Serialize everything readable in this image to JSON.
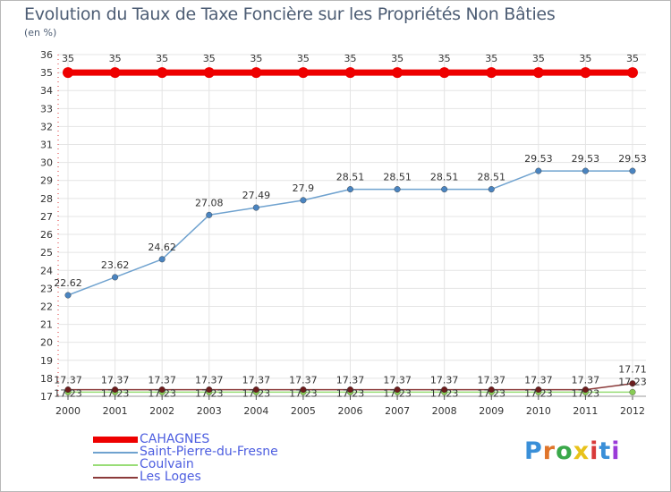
{
  "title": "Evolution du Taux de Taxe Foncière sur les Propriétés Non Bâties",
  "unit_label": "(en %)",
  "logo": {
    "text": "Proxiti",
    "colors": [
      "#3a8fd8",
      "#e0752a",
      "#3aa84a",
      "#e8c21a",
      "#d83a3a",
      "#3a8fd8",
      "#9a3ad8"
    ]
  },
  "chart_data": {
    "type": "line",
    "title": "Evolution du Taux de Taxe Foncière sur les Propriétés Non Bâties",
    "ylabel": "(en %)",
    "xlabel": "",
    "ylim": [
      17,
      36
    ],
    "yticks": [
      "17",
      "18",
      "19",
      "20",
      "21",
      "22",
      "23",
      "24",
      "25",
      "26",
      "27",
      "28",
      "29",
      "30",
      "31",
      "32",
      "33",
      "34",
      "35",
      "36"
    ],
    "categories": [
      "2000",
      "2001",
      "2002",
      "2003",
      "2004",
      "2005",
      "2006",
      "2007",
      "2008",
      "2009",
      "2010",
      "2011",
      "2012"
    ],
    "series": [
      {
        "name": "CAHAGNES",
        "color": "#ee0000",
        "values": [
          35,
          35,
          35,
          35,
          35,
          35,
          35,
          35,
          35,
          35,
          35,
          35,
          35
        ],
        "labels": [
          "35",
          "35",
          "35",
          "35",
          "35",
          "35",
          "35",
          "35",
          "35",
          "35",
          "35",
          "35",
          "35"
        ]
      },
      {
        "name": "Saint-Pierre-du-Fresne",
        "color": "#6fa2cf",
        "values": [
          22.62,
          23.62,
          24.62,
          27.08,
          27.49,
          27.9,
          28.51,
          28.51,
          28.51,
          28.51,
          29.53,
          29.53,
          29.53
        ],
        "labels": [
          "22.62",
          "23.62",
          "24.62",
          "27.08",
          "27.49",
          "27.9",
          "28.51",
          "28.51",
          "28.51",
          "28.51",
          "29.53",
          "29.53",
          "29.53"
        ]
      },
      {
        "name": "Coulvain",
        "color": "#99dd77",
        "values": [
          17.23,
          17.23,
          17.23,
          17.23,
          17.23,
          17.23,
          17.23,
          17.23,
          17.23,
          17.23,
          17.23,
          17.23,
          17.23
        ],
        "labels": [
          "17.23",
          "17.23",
          "17.23",
          "17.23",
          "17.23",
          "17.23",
          "17.23",
          "17.23",
          "17.23",
          "17.23",
          "17.23",
          "17.23",
          "17.23"
        ]
      },
      {
        "name": "Les Loges",
        "color": "#8b3a3a",
        "values": [
          17.37,
          17.37,
          17.37,
          17.37,
          17.37,
          17.37,
          17.37,
          17.37,
          17.37,
          17.37,
          17.37,
          17.37,
          17.71
        ],
        "labels": [
          "17.37",
          "17.37",
          "17.37",
          "17.37",
          "17.37",
          "17.37",
          "17.37",
          "17.37",
          "17.37",
          "17.37",
          "17.37",
          "17.37",
          "17.71"
        ]
      }
    ]
  }
}
